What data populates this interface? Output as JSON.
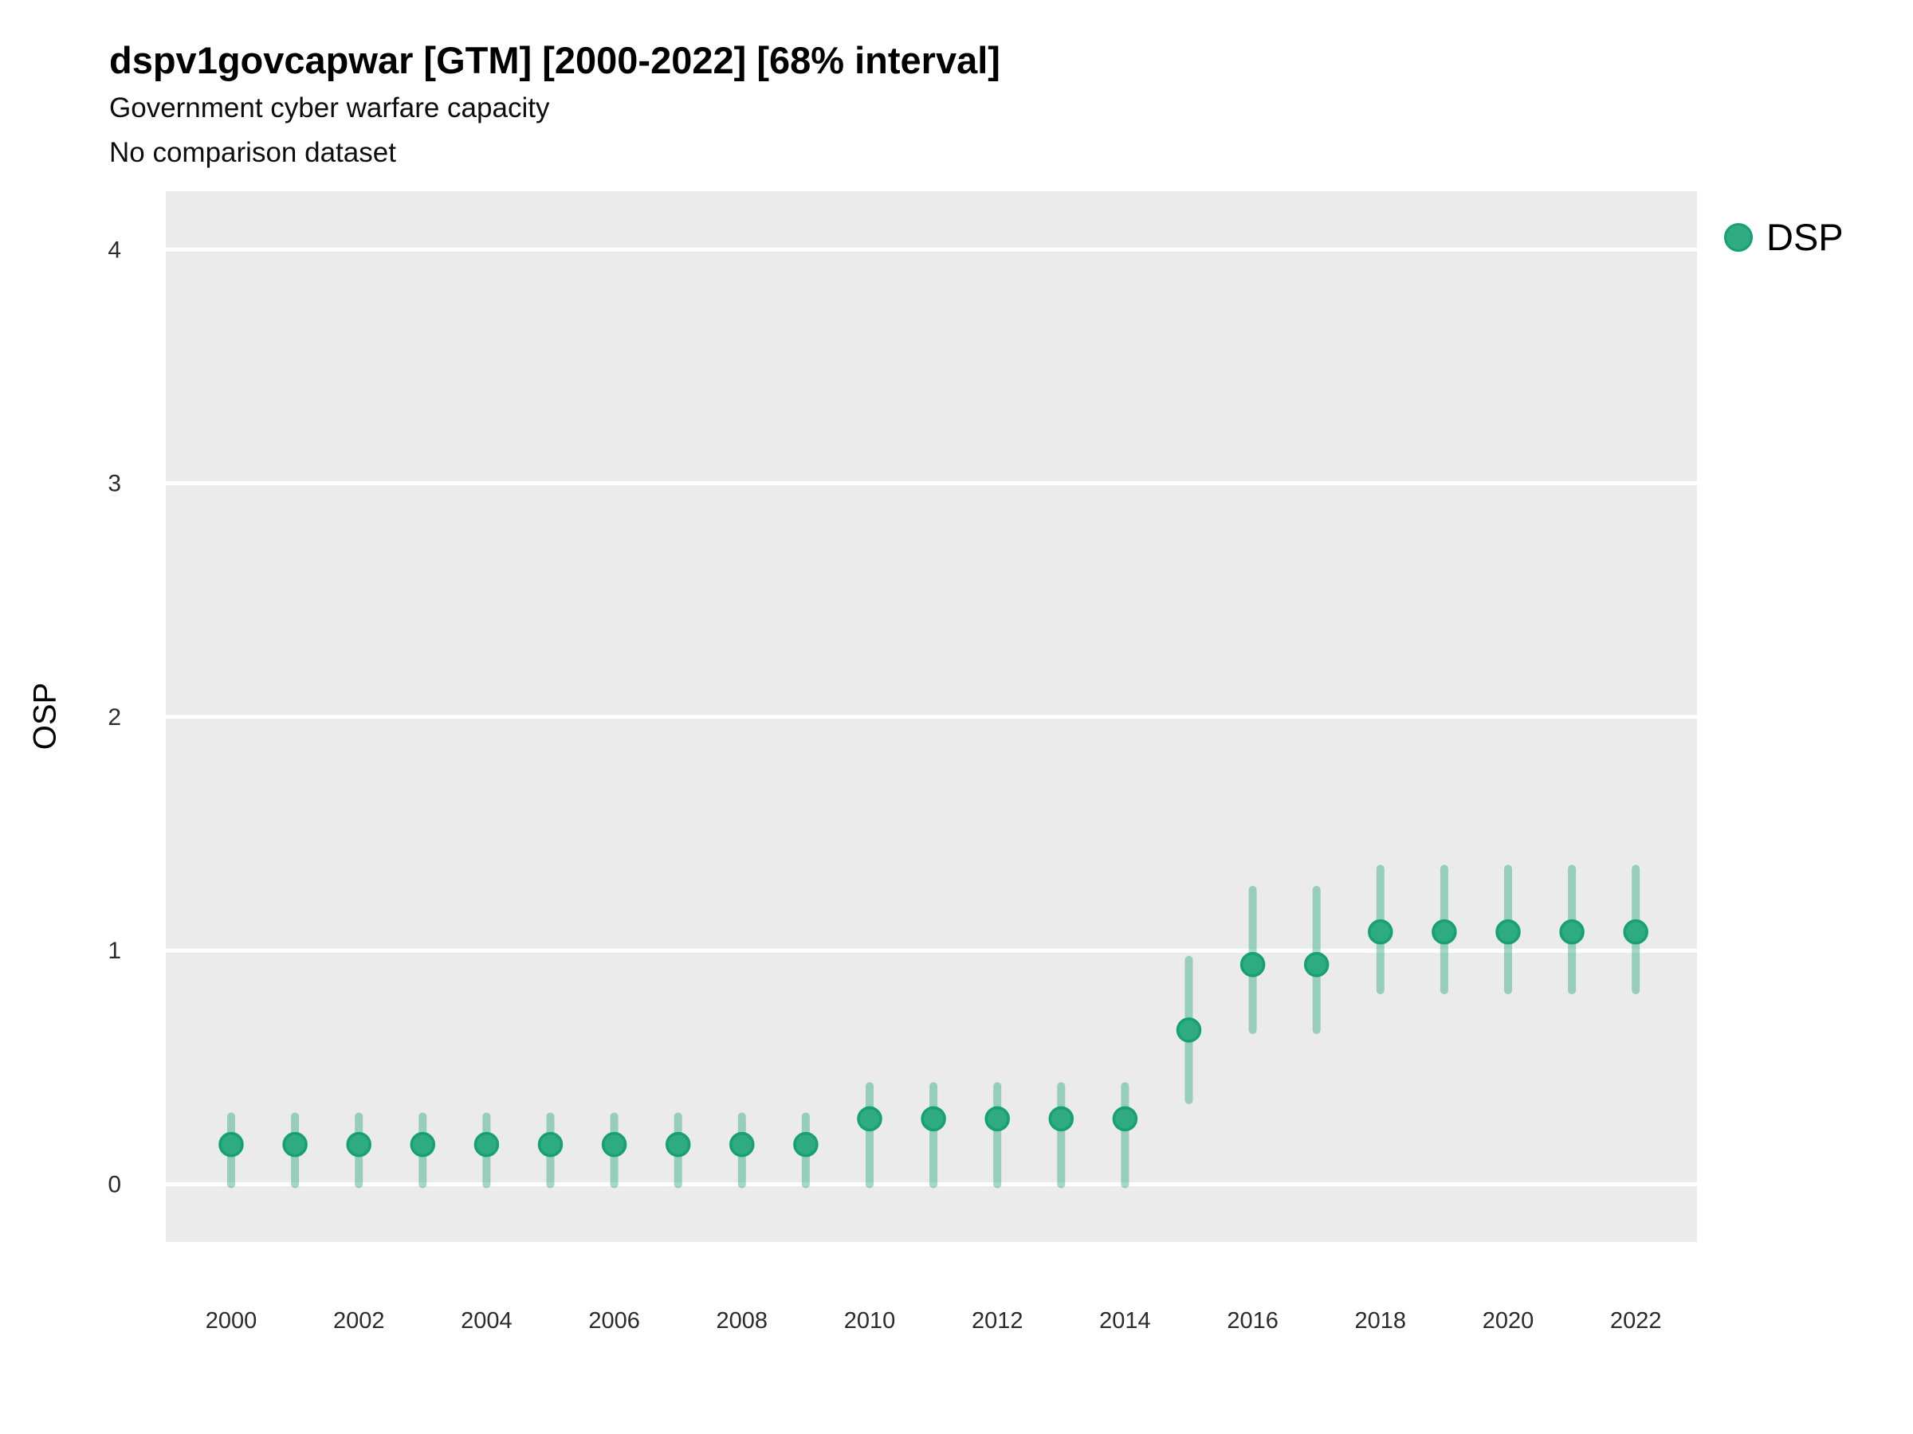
{
  "header": {
    "title": "dspv1govcapwar [GTM] [2000-2022] [68% interval]",
    "subtitle": "Government cyber warfare capacity",
    "note": "No comparison dataset"
  },
  "legend": {
    "position": "right-top",
    "items": [
      {
        "label": "DSP",
        "color": "#2eab81",
        "border_color": "#17a076"
      }
    ]
  },
  "colors": {
    "point_fill": "#2eab81",
    "point_stroke": "#17a076",
    "interval": "rgba(46, 171, 129, 0.45)",
    "panel_background": "#ebebeb",
    "gridline": "#ffffff",
    "tick_text": "#2b2b2b",
    "title_text": "#000000"
  },
  "chart_data": {
    "type": "scatter",
    "subtype": "pointrange",
    "title": "dspv1govcapwar [GTM] [2000-2022] [68% interval]",
    "subtitle": "Government cyber warfare capacity",
    "note": "No comparison dataset",
    "xlabel": "",
    "ylabel": "OSP",
    "xlim": [
      1999,
      2023
    ],
    "ylim": [
      -0.25,
      4.25
    ],
    "xticks": [
      2000,
      2002,
      2004,
      2006,
      2008,
      2010,
      2012,
      2014,
      2016,
      2018,
      2020,
      2022
    ],
    "yticks": [
      0,
      1,
      2,
      3,
      4
    ],
    "grid": "horizontal-major-only",
    "legend_position": "right-top",
    "interval_level": "68%",
    "series": [
      {
        "name": "DSP",
        "x": [
          2000,
          2001,
          2002,
          2003,
          2004,
          2005,
          2006,
          2007,
          2008,
          2009,
          2010,
          2011,
          2012,
          2013,
          2014,
          2015,
          2016,
          2017,
          2018,
          2019,
          2020,
          2021,
          2022
        ],
        "y": [
          0.17,
          0.17,
          0.17,
          0.17,
          0.17,
          0.17,
          0.17,
          0.17,
          0.17,
          0.17,
          0.28,
          0.28,
          0.28,
          0.28,
          0.28,
          0.66,
          0.94,
          0.94,
          1.08,
          1.08,
          1.08,
          1.08,
          1.08
        ],
        "ylow": [
          0.0,
          0.0,
          0.0,
          0.0,
          0.0,
          0.0,
          0.0,
          0.0,
          0.0,
          0.0,
          0.0,
          0.0,
          0.0,
          0.0,
          0.0,
          0.36,
          0.66,
          0.66,
          0.83,
          0.83,
          0.83,
          0.83,
          0.83
        ],
        "yhigh": [
          0.29,
          0.29,
          0.29,
          0.29,
          0.29,
          0.29,
          0.29,
          0.29,
          0.29,
          0.29,
          0.42,
          0.42,
          0.42,
          0.42,
          0.42,
          0.96,
          1.26,
          1.26,
          1.35,
          1.35,
          1.35,
          1.35,
          1.35
        ]
      }
    ]
  }
}
